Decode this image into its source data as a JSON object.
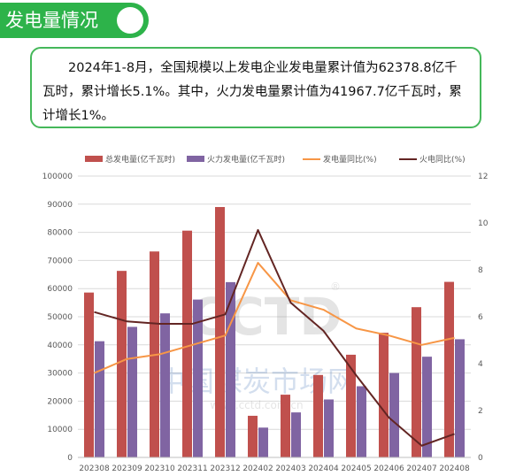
{
  "header": {
    "title": "发电量情况"
  },
  "summary": {
    "text": "2024年1-8月，全国规模以上发电企业发电量累计值为62378.8亿千瓦时，累计增长5.1%。其中，火力发电量累计值为41967.7亿千瓦时，累计增长1%。"
  },
  "watermark": {
    "logo_text": "CCTD",
    "registered": "®",
    "chinese": "中国煤炭市场网",
    "url": "www.cctd.com.cn"
  },
  "colors": {
    "total_bar": "#c0504d",
    "thermal_bar": "#8064a2",
    "total_yoy": "#f79646",
    "thermal_yoy": "#632523"
  },
  "chart_data": {
    "type": "bar",
    "title": "",
    "xlabel": "",
    "ylabel": "",
    "categories": [
      "202308",
      "202309",
      "202310",
      "202311",
      "202312",
      "202402",
      "202403",
      "202404",
      "202405",
      "202406",
      "202407",
      "202408"
    ],
    "series": [
      {
        "name": "总发电量(亿千瓦时)",
        "type": "bar",
        "axis": "left",
        "values": [
          58600,
          66300,
          73200,
          80600,
          89000,
          14800,
          22300,
          29300,
          36500,
          44300,
          53400,
          62400
        ]
      },
      {
        "name": "火力发电量(亿千瓦时)",
        "type": "bar",
        "axis": "left",
        "values": [
          41300,
          46400,
          51200,
          56100,
          62300,
          10600,
          16000,
          20600,
          25300,
          30000,
          35800,
          42000
        ]
      },
      {
        "name": "发电量同比(%)",
        "type": "line",
        "axis": "right",
        "values": [
          3.6,
          4.2,
          4.4,
          4.8,
          5.2,
          8.3,
          6.7,
          6.3,
          5.5,
          5.2,
          4.8,
          5.1
        ]
      },
      {
        "name": "火电同比(%)",
        "type": "line",
        "axis": "right",
        "values": [
          6.2,
          5.8,
          5.7,
          5.7,
          6.1,
          9.7,
          6.6,
          5.4,
          3.5,
          1.7,
          0.5,
          1.0
        ]
      }
    ],
    "ylim": [
      0,
      100000
    ],
    "y_ticks": [
      "0",
      "10000",
      "20000",
      "30000",
      "40000",
      "50000",
      "60000",
      "70000",
      "80000",
      "90000",
      "100000"
    ],
    "y2lim": [
      0,
      12
    ],
    "y2_ticks": [
      "0",
      "2",
      "4",
      "6",
      "8",
      "10",
      "12"
    ],
    "grid": true,
    "legend_position": "top-center"
  }
}
